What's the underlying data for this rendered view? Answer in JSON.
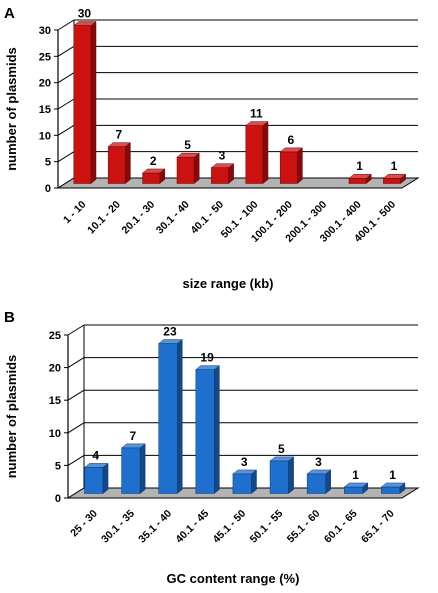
{
  "chart_data": [
    {
      "type": "bar",
      "panel": "A",
      "categories": [
        "1 - 10",
        "10.1 - 20",
        "20.1 - 30",
        "30.1 - 40",
        "40.1 - 50",
        "50.1 - 100",
        "100.1 - 200",
        "200.1 - 300",
        "300.1 - 400",
        "400.1 - 500"
      ],
      "values": [
        30,
        7,
        2,
        5,
        3,
        11,
        6,
        0,
        1,
        1
      ],
      "data_labels": [
        "30",
        "7",
        "2",
        "5",
        "3",
        "11",
        "6",
        "",
        "1",
        "1"
      ],
      "xlabel": "size range (kb)",
      "ylabel": "number of plasmids",
      "ylim": [
        0,
        30
      ],
      "yticks": [
        "0",
        "5",
        "10",
        "15",
        "20",
        "25",
        "30"
      ],
      "grid": true,
      "color": "#cc1111"
    },
    {
      "type": "bar",
      "panel": "B",
      "categories": [
        "25 - 30",
        "30.1 - 35",
        "35.1 - 40",
        "40.1 - 45",
        "45.1 - 50",
        "50.1 - 55",
        "55.1 - 60",
        "60.1 - 65",
        "65.1 - 70"
      ],
      "values": [
        4,
        7,
        23,
        19,
        3,
        5,
        3,
        1,
        1
      ],
      "data_labels": [
        "4",
        "7",
        "23",
        "19",
        "3",
        "5",
        "3",
        "1",
        "1"
      ],
      "xlabel": "GC content range (%)",
      "ylabel": "number of plasmids",
      "ylim": [
        0,
        25
      ],
      "yticks": [
        "0",
        "5",
        "10",
        "15",
        "20",
        "25"
      ],
      "grid": true,
      "color": "#1f6fcf"
    }
  ]
}
